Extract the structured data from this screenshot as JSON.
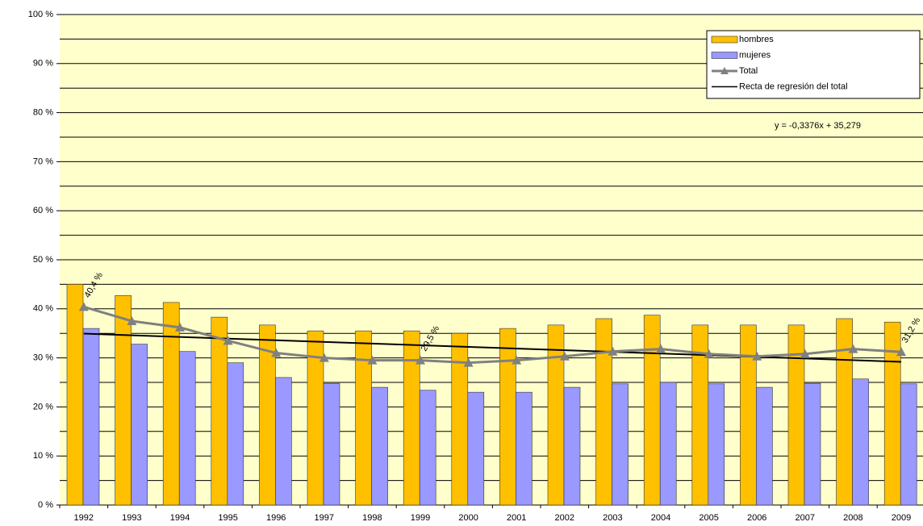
{
  "chart_data": {
    "type": "bar",
    "categories": [
      "1992",
      "1993",
      "1994",
      "1995",
      "1996",
      "1997",
      "1998",
      "1999",
      "2000",
      "2001",
      "2002",
      "2003",
      "2004",
      "2005",
      "2006",
      "2007",
      "2008",
      "2009"
    ],
    "series": [
      {
        "name": "hombres",
        "color": "#ffc000",
        "values": [
          45,
          42.7,
          41.3,
          38.3,
          36.7,
          35.5,
          35.5,
          35.5,
          35,
          36,
          36.7,
          38,
          38.7,
          36.7,
          36.7,
          36.7,
          38,
          37.3
        ]
      },
      {
        "name": "mujeres",
        "color": "#9999ff",
        "values": [
          36,
          32.8,
          31.3,
          29,
          26,
          24.8,
          24,
          23.4,
          23,
          23,
          24,
          24.7,
          25,
          24.7,
          24,
          24.8,
          25.7,
          24.7
        ]
      },
      {
        "name": "Total",
        "type": "line",
        "color": "#808080",
        "values": [
          40.4,
          37.5,
          36.2,
          33.5,
          31,
          30,
          29.5,
          29.5,
          29,
          29.5,
          30.3,
          31.3,
          31.8,
          30.8,
          30.3,
          30.8,
          31.8,
          31.2
        ],
        "value_labels": [
          "40,4 %",
          null,
          null,
          null,
          null,
          null,
          null,
          "29,5 %",
          null,
          null,
          null,
          null,
          null,
          null,
          null,
          null,
          null,
          "31,2 %"
        ]
      }
    ],
    "regression": {
      "name": "Recta de regresión del total",
      "slope": -0.3376,
      "intercept": 35.279,
      "label": "y = -0,3376x + 35,279"
    },
    "ylim": [
      0,
      100
    ],
    "yticks": [
      {
        "value": 0,
        "label": "0 %"
      },
      {
        "value": 10,
        "label": "10 %"
      },
      {
        "value": 20,
        "label": "20 %"
      },
      {
        "value": 30,
        "label": "30 %"
      },
      {
        "value": 40,
        "label": "40 %"
      },
      {
        "value": 50,
        "label": "50 %"
      },
      {
        "value": 60,
        "label": "60 %"
      },
      {
        "value": 70,
        "label": "70 %"
      },
      {
        "value": 80,
        "label": "80 %"
      },
      {
        "value": 90,
        "label": "90 %"
      },
      {
        "value": 100,
        "label": "100 %"
      }
    ],
    "minor_yticks": [
      5,
      15,
      25,
      35,
      45,
      55,
      65,
      75,
      85,
      95
    ],
    "grid": true,
    "legend": "top-right",
    "plot_background": "#ffffcc"
  }
}
